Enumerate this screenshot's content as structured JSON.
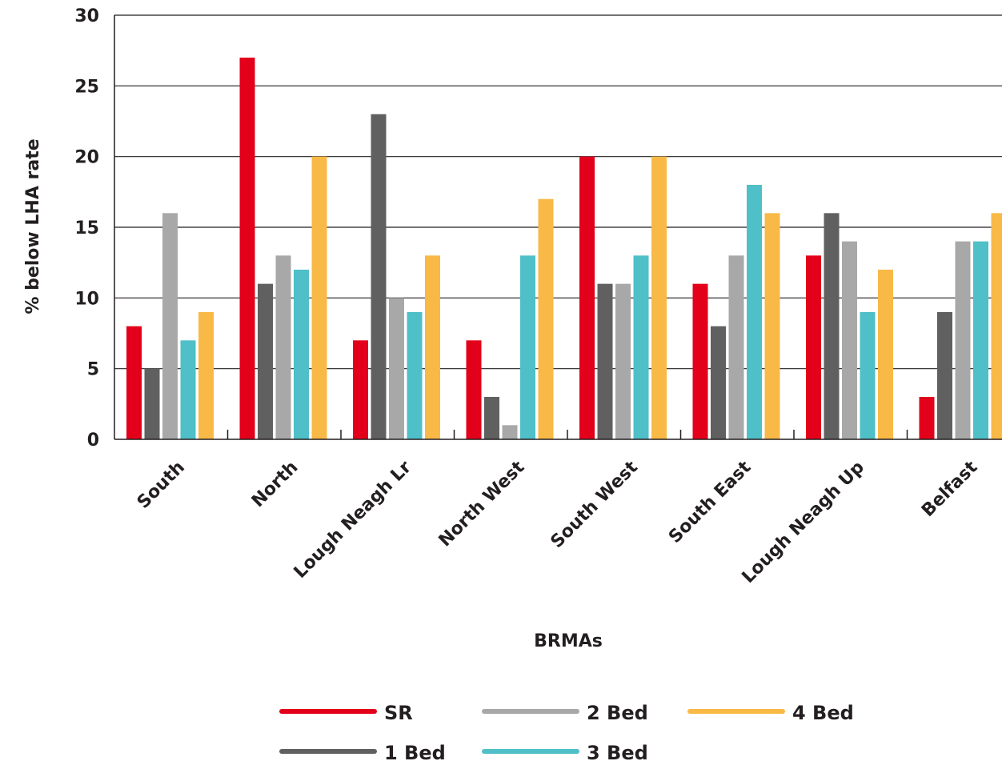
{
  "chart_data": {
    "type": "bar",
    "title": "",
    "xlabel": "BRMAs",
    "ylabel": "% below LHA rate",
    "ylim": [
      0,
      30
    ],
    "yticks": [
      0,
      5,
      10,
      15,
      20,
      25,
      30
    ],
    "grid": true,
    "legend_position": "bottom",
    "categories": [
      "South",
      "North",
      "Lough Neagh Lr",
      "North West",
      "South West",
      "South East",
      "Lough Neagh Up",
      "Belfast"
    ],
    "series": [
      {
        "name": "SR",
        "color": "#e2001a",
        "values": [
          8,
          27,
          7,
          7,
          20,
          11,
          13,
          3
        ]
      },
      {
        "name": "1 Bed",
        "color": "#606060",
        "values": [
          5,
          11,
          23,
          3,
          11,
          8,
          16,
          9
        ]
      },
      {
        "name": "2 Bed",
        "color": "#a8a8a8",
        "values": [
          16,
          13,
          10,
          1,
          11,
          13,
          14,
          14
        ]
      },
      {
        "name": "3 Bed",
        "color": "#4fbfc8",
        "values": [
          7,
          12,
          9,
          13,
          13,
          18,
          9,
          14
        ]
      },
      {
        "name": "4 Bed",
        "color": "#f8b946",
        "values": [
          9,
          20,
          13,
          17,
          20,
          16,
          12,
          16
        ]
      }
    ]
  }
}
